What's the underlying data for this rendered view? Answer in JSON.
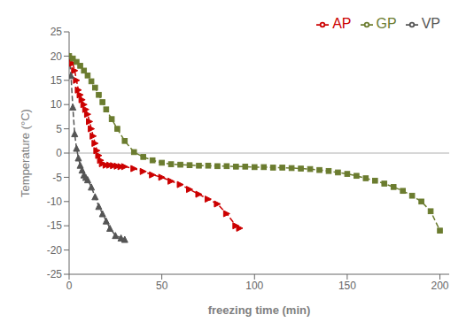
{
  "chart_data": {
    "type": "line",
    "xlabel": "freezing time (min)",
    "ylabel": "Temperature (°C)",
    "xlim": [
      0,
      205
    ],
    "ylim": [
      -25,
      25
    ],
    "xticks": [
      0,
      50,
      100,
      150,
      200
    ],
    "yticks": [
      -25,
      -20,
      -15,
      -10,
      -5,
      0,
      5,
      10,
      15,
      20,
      25
    ],
    "hline_y": 0,
    "hline_color": "#b0b0b0",
    "grid": false,
    "legend": "top-right",
    "series": [
      {
        "name": "AP",
        "color": "#cc0000",
        "marker": "triangle_right",
        "line_style": "dashed",
        "x": [
          0,
          1,
          2,
          3,
          4,
          5,
          6,
          7,
          8,
          9,
          10,
          11,
          12,
          13,
          14,
          15,
          16,
          17,
          18,
          20,
          22,
          24,
          26,
          28,
          30,
          35,
          40,
          45,
          50,
          55,
          60,
          65,
          70,
          75,
          80,
          85,
          90,
          92
        ],
        "values": [
          20,
          19.5,
          18.5,
          17,
          15,
          13,
          12,
          11,
          10,
          9,
          8,
          6.5,
          5,
          3.5,
          2,
          0.5,
          -0.5,
          -1.5,
          -2.2,
          -2.5,
          -2.5,
          -2.6,
          -2.7,
          -2.8,
          -2.8,
          -3.2,
          -3.8,
          -4.5,
          -5.0,
          -5.8,
          -6.5,
          -7.5,
          -8.5,
          -9.5,
          -10.5,
          -12.5,
          -15.0,
          -15.5
        ]
      },
      {
        "name": "VP",
        "color": "#555555",
        "marker": "triangle_up",
        "line_style": "dashed",
        "x": [
          0,
          1,
          2,
          3,
          4,
          5,
          6,
          7,
          8,
          9,
          10,
          12,
          14,
          16,
          18,
          20,
          22,
          25,
          28,
          30
        ],
        "values": [
          20,
          16,
          9.5,
          4,
          1,
          -1,
          -2.5,
          -3.5,
          -4.5,
          -5.0,
          -5.5,
          -7.0,
          -9.0,
          -11.0,
          -12.5,
          -14.0,
          -15.5,
          -17.0,
          -17.5,
          -17.8
        ]
      },
      {
        "name": "GP",
        "color": "#6b7c2f",
        "marker": "square",
        "line_style": "dashed",
        "x": [
          0,
          2,
          4,
          6,
          8,
          10,
          12,
          14,
          16,
          18,
          20,
          23,
          26,
          30,
          35,
          40,
          45,
          50,
          55,
          60,
          65,
          70,
          75,
          80,
          85,
          90,
          95,
          100,
          105,
          110,
          115,
          120,
          125,
          130,
          135,
          140,
          145,
          150,
          155,
          160,
          165,
          170,
          175,
          180,
          185,
          190,
          195,
          200
        ],
        "values": [
          20,
          19.5,
          18.8,
          18,
          17,
          16,
          14.8,
          13.5,
          12,
          10.5,
          9,
          7,
          5,
          2.5,
          0.2,
          -0.8,
          -1.5,
          -2.0,
          -2.3,
          -2.4,
          -2.5,
          -2.6,
          -2.6,
          -2.7,
          -2.7,
          -2.8,
          -2.8,
          -2.9,
          -2.9,
          -3.0,
          -3.0,
          -3.1,
          -3.2,
          -3.3,
          -3.5,
          -3.7,
          -4.0,
          -4.3,
          -4.7,
          -5.2,
          -5.7,
          -6.3,
          -7.0,
          -7.8,
          -8.8,
          -10.0,
          -12.0,
          -16.0
        ]
      }
    ]
  }
}
